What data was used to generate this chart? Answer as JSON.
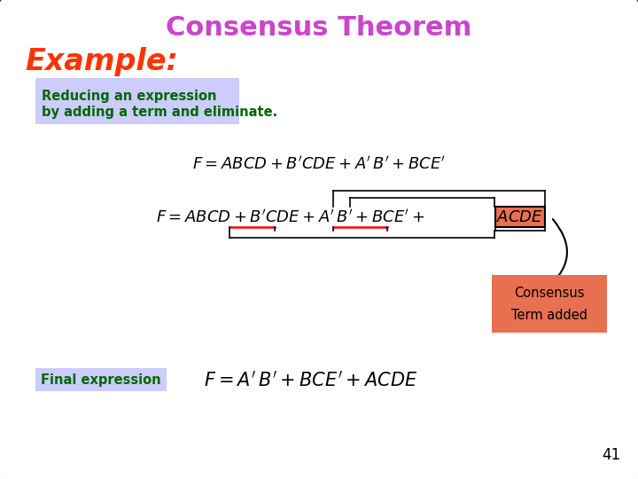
{
  "title": "Consensus Theorem",
  "title_color": "#CC44CC",
  "example_label": "Example:",
  "example_color": "#FF3300",
  "bg_color": "#FFFFFF",
  "border_color": "#1111AA",
  "description_line1": "Reducing an expression",
  "description_line2": "by adding a term and eliminate.",
  "description_bg": "#CCCCFF",
  "description_text_color": "#006600",
  "consensus_label1": "Consensus",
  "consensus_label2": "Term added",
  "consensus_bg": "#E87050",
  "final_label": "Final expression",
  "final_label_bg": "#CCCCFF",
  "final_label_color": "#006600",
  "page_number": "41",
  "acde_bg": "#E87050"
}
